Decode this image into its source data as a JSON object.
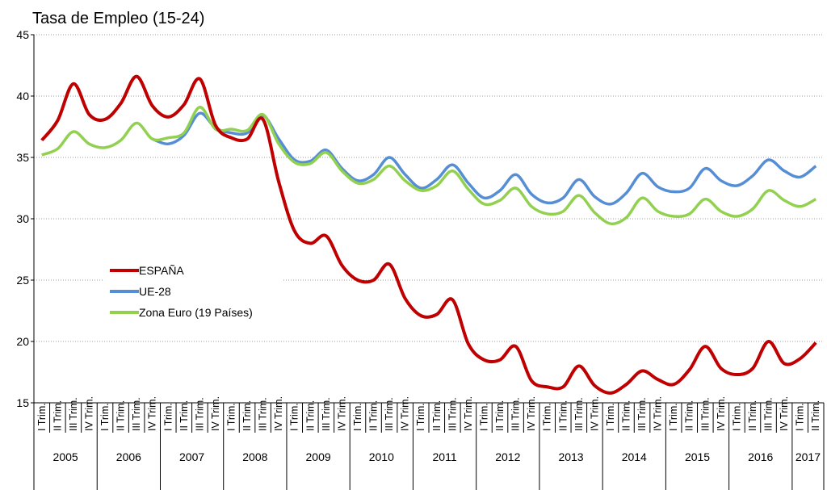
{
  "chart_data": {
    "type": "line",
    "title": "Tasa de Empleo (15-24)",
    "categories": [
      "I Trim.",
      "II Trim.",
      "III Trim.",
      "IV Trim.",
      "I Trim.",
      "II Trim.",
      "III Trim.",
      "IV Trim.",
      "I Trim.",
      "II Trim.",
      "III Trim.",
      "IV Trim.",
      "I Trim.",
      "II Trim.",
      "III Trim.",
      "IV Trim.",
      "I Trim.",
      "II Trim.",
      "III Trim.",
      "IV Trim.",
      "I Trim.",
      "II Trim.",
      "III Trim.",
      "IV Trim.",
      "I Trim.",
      "II Trim.",
      "III Trim.",
      "IV Trim.",
      "I Trim.",
      "II Trim.",
      "III Trim.",
      "IV Trim.",
      "I Trim.",
      "II Trim.",
      "III Trim.",
      "IV Trim.",
      "I Trim.",
      "II Trim.",
      "III Trim.",
      "IV Trim.",
      "I Trim.",
      "II Trim.",
      "III Trim.",
      "IV Trim.",
      "I Trim.",
      "II Trim.",
      "III Trim.",
      "IV Trim.",
      "I Trim.",
      "II Trim."
    ],
    "years": [
      "2005",
      "2006",
      "2007",
      "2008",
      "2009",
      "2010",
      "2011",
      "2012",
      "2013",
      "2014",
      "2015",
      "2016",
      "2017"
    ],
    "series": [
      {
        "name": "ESPAÑA",
        "color": "#c00000",
        "values": [
          36.4,
          38.0,
          41.0,
          38.5,
          38.1,
          39.4,
          41.6,
          39.2,
          38.3,
          39.3,
          41.4,
          37.6,
          36.6,
          36.5,
          38.1,
          33.0,
          29.0,
          28.0,
          28.6,
          26.2,
          25.0,
          25.0,
          26.3,
          23.5,
          22.1,
          22.2,
          23.4,
          19.8,
          18.5,
          18.5,
          19.6,
          16.8,
          16.3,
          16.3,
          18.0,
          16.4,
          15.8,
          16.5,
          17.6,
          16.9,
          16.5,
          17.7,
          19.6,
          17.8,
          17.3,
          17.8,
          20.0,
          18.2,
          18.6,
          19.9
        ]
      },
      {
        "name": "UE-28",
        "color": "#558ed5",
        "values": [
          null,
          null,
          null,
          null,
          null,
          null,
          null,
          36.5,
          36.1,
          36.8,
          38.6,
          37.4,
          37.0,
          37.0,
          38.4,
          36.5,
          34.8,
          34.7,
          35.6,
          34.1,
          33.1,
          33.6,
          35.0,
          33.6,
          32.5,
          33.2,
          34.4,
          32.9,
          31.7,
          32.3,
          33.6,
          32.0,
          31.3,
          31.7,
          33.2,
          31.8,
          31.2,
          32.1,
          33.7,
          32.6,
          32.2,
          32.5,
          34.1,
          33.1,
          32.7,
          33.5,
          34.8,
          33.9,
          33.4,
          34.3
        ]
      },
      {
        "name": "Zona Euro (19 Países)",
        "color": "#92d050",
        "values": [
          35.2,
          35.7,
          37.1,
          36.1,
          35.8,
          36.4,
          37.8,
          36.5,
          36.6,
          37.0,
          39.1,
          37.3,
          37.3,
          37.2,
          38.5,
          36.1,
          34.6,
          34.5,
          35.4,
          33.9,
          32.9,
          33.2,
          34.3,
          33.1,
          32.3,
          32.7,
          33.9,
          32.4,
          31.2,
          31.5,
          32.5,
          31.0,
          30.4,
          30.6,
          31.9,
          30.5,
          29.6,
          30.1,
          31.7,
          30.6,
          30.2,
          30.4,
          31.6,
          30.6,
          30.2,
          30.8,
          32.3,
          31.5,
          31.0,
          31.6
        ]
      }
    ],
    "ylim": [
      15,
      45
    ],
    "yticks": [
      15,
      20,
      25,
      30,
      35,
      40,
      45
    ],
    "grid": true
  }
}
